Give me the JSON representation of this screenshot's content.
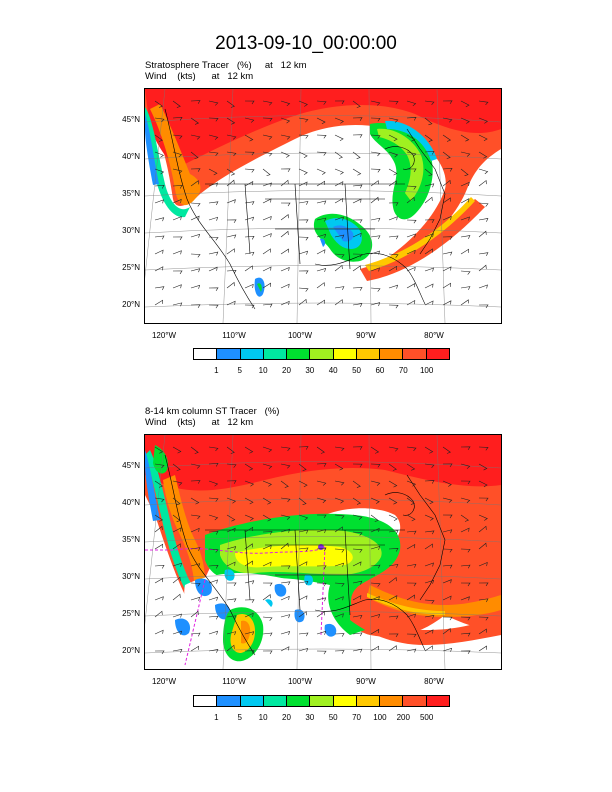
{
  "title": "2013-09-10_00:00:00",
  "panels": [
    {
      "label_line1": "Stratosphere Tracer   (%)     at   12 km",
      "label_line2": "Wind    (kts)      at   12 km",
      "lat_labels": [
        "45°N",
        "40°N",
        "35°N",
        "30°N",
        "25°N",
        "20°N"
      ],
      "lon_labels": [
        "120°W",
        "110°W",
        "100°W",
        "90°W",
        "80°W"
      ],
      "colorbar_levels": [
        "1",
        "5",
        "10",
        "20",
        "30",
        "40",
        "50",
        "60",
        "70",
        "100"
      ],
      "colorbar_colors": [
        "#ffffff",
        "#1e90ff",
        "#00c8f0",
        "#00e8a0",
        "#00e030",
        "#a0f020",
        "#ffff00",
        "#ffc800",
        "#ff8c00",
        "#ff5028",
        "#ff1e1e"
      ]
    },
    {
      "label_line1": "8-14 km column ST Tracer   (%)",
      "label_line2": "Wind    (kts)      at   12 km",
      "lat_labels": [
        "45°N",
        "40°N",
        "35°N",
        "30°N",
        "25°N",
        "20°N"
      ],
      "lon_labels": [
        "120°W",
        "110°W",
        "100°W",
        "90°W",
        "80°W"
      ],
      "colorbar_levels": [
        "1",
        "5",
        "10",
        "20",
        "30",
        "50",
        "70",
        "100",
        "200",
        "500"
      ],
      "colorbar_colors": [
        "#ffffff",
        "#1e90ff",
        "#00c8f0",
        "#00e8a0",
        "#00e030",
        "#a0f020",
        "#ffff00",
        "#ffc800",
        "#ff8c00",
        "#ff5028",
        "#ff1e1e"
      ]
    }
  ]
}
